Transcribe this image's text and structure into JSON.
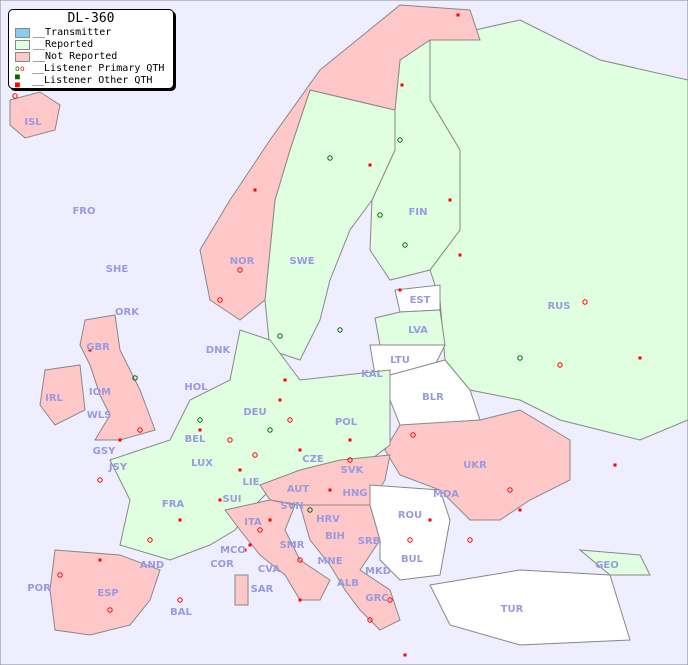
{
  "legend": {
    "title": "DL-360",
    "items": [
      {
        "label": "__Transmitter",
        "color": "#88ccee"
      },
      {
        "label": "__Reported",
        "color": "#e0ffe0"
      },
      {
        "label": "__Not Reported",
        "color": "#ffc8c8"
      },
      {
        "label": "__Listener Primary QTH",
        "colors": [
          "#006600",
          "#ff0000"
        ]
      },
      {
        "label": "__Listener Other QTH",
        "colors": [
          "#006600",
          "#ff0000"
        ]
      }
    ]
  },
  "colors": {
    "sea": "#eeeeff",
    "reported": "#e0ffe0",
    "not_reported": "#ffc8c8",
    "unreported_white": "#ffffff",
    "label": "#9a9ae0"
  },
  "countries": [
    "ISL",
    "FRO",
    "SHE",
    "ORK",
    "NOR",
    "SWE",
    "FIN",
    "EST",
    "LVA",
    "LTU",
    "RUS",
    "DNK",
    "IRL",
    "GBR",
    "IOM",
    "WLS",
    "HOL",
    "BEL",
    "DEU",
    "POL",
    "KAL",
    "BLR",
    "UKR",
    "GSY",
    "JSY",
    "LUX",
    "CZE",
    "SVK",
    "HNG",
    "AUT",
    "LIE",
    "SUI",
    "FRA",
    "MDA",
    "ROU",
    "SVN",
    "HRV",
    "BIH",
    "SRB",
    "ITA",
    "MCO",
    "COR",
    "SMR",
    "MNE",
    "BUL",
    "CVA",
    "ALB",
    "MKD",
    "GEO",
    "AND",
    "POR",
    "ESP",
    "SAR",
    "BAL",
    "GRC",
    "TUR"
  ]
}
